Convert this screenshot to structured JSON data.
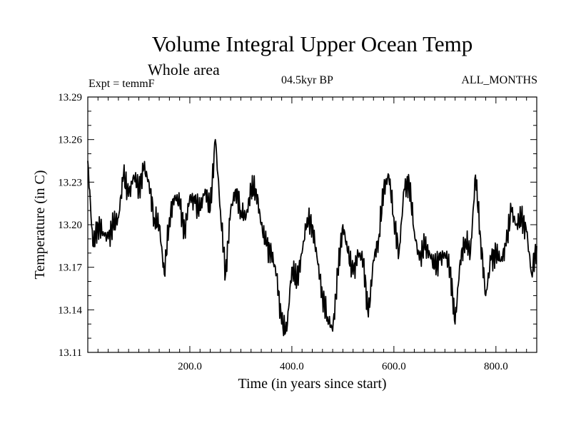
{
  "header": {
    "title": "Volume Integral Upper Ocean Temp",
    "subtitle": "Whole area",
    "experiment": "Expt = temmF",
    "period": "04.5kyr BP",
    "months": "ALL_MONTHS"
  },
  "chart_data": {
    "type": "line",
    "title": "Volume Integral Upper Ocean Temp",
    "xlabel": "Time (in years since start)",
    "ylabel": "Temperature (in C)",
    "xlim": [
      0,
      880
    ],
    "ylim": [
      13.11,
      13.29
    ],
    "xticks": [
      200,
      400,
      600,
      800
    ],
    "xtick_labels": [
      "200.0",
      "400.0",
      "600.0",
      "800.0"
    ],
    "yticks": [
      13.11,
      13.14,
      13.17,
      13.2,
      13.23,
      13.26,
      13.29
    ],
    "ytick_labels": [
      "13.11",
      "13.14",
      "13.17",
      "13.20",
      "13.23",
      "13.26",
      "13.29"
    ],
    "grid": false,
    "series": [
      {
        "name": "Volume Integral Upper Ocean Temp",
        "x": [
          0,
          10,
          20,
          30,
          40,
          50,
          60,
          70,
          80,
          90,
          100,
          110,
          120,
          130,
          140,
          150,
          160,
          170,
          180,
          190,
          200,
          210,
          220,
          230,
          240,
          250,
          260,
          270,
          280,
          290,
          300,
          310,
          320,
          330,
          340,
          350,
          360,
          370,
          380,
          390,
          400,
          410,
          420,
          430,
          440,
          450,
          460,
          470,
          480,
          490,
          500,
          510,
          520,
          530,
          540,
          550,
          560,
          570,
          580,
          590,
          600,
          610,
          620,
          630,
          640,
          650,
          660,
          670,
          680,
          690,
          700,
          710,
          720,
          730,
          740,
          750,
          760,
          770,
          780,
          790,
          800,
          810,
          820,
          830,
          840,
          850,
          860,
          870,
          880
        ],
        "values": [
          13.245,
          13.185,
          13.2,
          13.195,
          13.19,
          13.2,
          13.205,
          13.235,
          13.22,
          13.235,
          13.225,
          13.24,
          13.23,
          13.205,
          13.2,
          13.165,
          13.205,
          13.22,
          13.215,
          13.195,
          13.22,
          13.215,
          13.21,
          13.225,
          13.21,
          13.26,
          13.21,
          13.165,
          13.21,
          13.225,
          13.21,
          13.205,
          13.225,
          13.225,
          13.2,
          13.185,
          13.18,
          13.165,
          13.13,
          13.125,
          13.17,
          13.16,
          13.18,
          13.205,
          13.2,
          13.175,
          13.15,
          13.135,
          13.125,
          13.165,
          13.2,
          13.18,
          13.165,
          13.18,
          13.175,
          13.135,
          13.175,
          13.19,
          13.225,
          13.235,
          13.205,
          13.18,
          13.225,
          13.23,
          13.195,
          13.175,
          13.185,
          13.18,
          13.17,
          13.175,
          13.18,
          13.17,
          13.13,
          13.175,
          13.19,
          13.18,
          13.235,
          13.19,
          13.15,
          13.175,
          13.18,
          13.175,
          13.185,
          13.21,
          13.2,
          13.205,
          13.195,
          13.165,
          13.185
        ]
      }
    ]
  }
}
